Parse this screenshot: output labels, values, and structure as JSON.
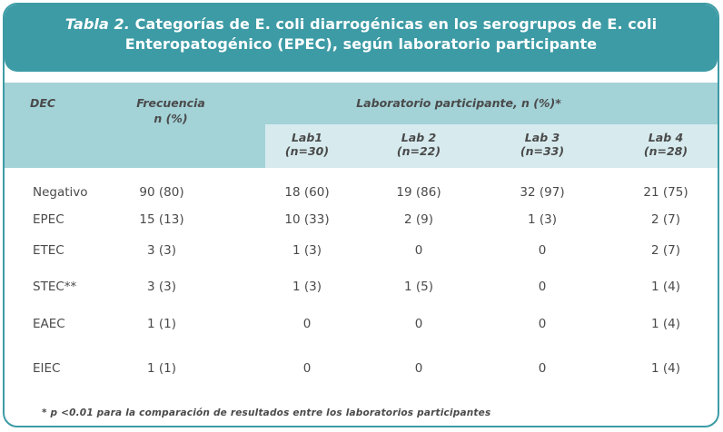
{
  "title": {
    "prefix": "Tabla 2.",
    "line1_rest": "Categorías de E. coli diarrogénicas en los serogrupos de E. coli",
    "line2": "Enteropatogénico (EPEC), según laboratorio participante"
  },
  "header": {
    "dec": "DEC",
    "frecuencia": "Frecuencia",
    "frecuencia_unit": "n (%)",
    "laboratorio": "Laboratorio participante, n (%)*",
    "labs": [
      {
        "name": "Lab1",
        "n": "(n=30)"
      },
      {
        "name": "Lab 2",
        "n": "(n=22)"
      },
      {
        "name": "Lab 3",
        "n": "(n=33)"
      },
      {
        "name": "Lab 4",
        "n": "(n=28)"
      }
    ]
  },
  "rows": [
    {
      "label": "Negativo",
      "freq": "90 (80)",
      "lab1": "18 (60)",
      "lab2": "19 (86)",
      "lab3": "32 (97)",
      "lab4": "21 (75)"
    },
    {
      "label": "EPEC",
      "freq": "15 (13)",
      "lab1": "10 (33)",
      "lab2": "2 (9)",
      "lab3": "1 (3)",
      "lab4": "2 (7)"
    },
    {
      "label": "ETEC",
      "freq": "3 (3)",
      "lab1": "1 (3)",
      "lab2": "0",
      "lab3": "0",
      "lab4": "2 (7)"
    },
    {
      "label": "STEC**",
      "freq": "3 (3)",
      "lab1": "1 (3)",
      "lab2": "1 (5)",
      "lab3": "0",
      "lab4": "1 (4)"
    },
    {
      "label": "EAEC",
      "freq": "1 (1)",
      "lab1": "0",
      "lab2": "0",
      "lab3": "0",
      "lab4": "1 (4)"
    },
    {
      "label": "EIEC",
      "freq": "1 (1)",
      "lab1": "0",
      "lab2": "0",
      "lab3": "0",
      "lab4": "1 (4)"
    }
  ],
  "footnote": "* p <0.01 para la comparación de resultados entre los laboratorios participantes"
}
